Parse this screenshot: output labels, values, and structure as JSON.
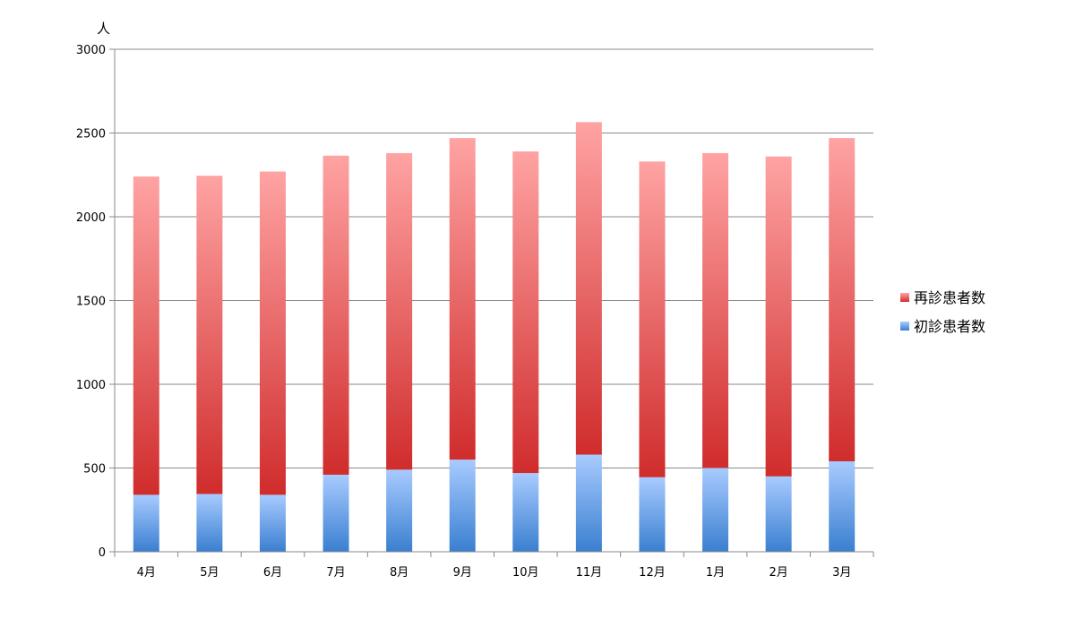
{
  "chart_data": {
    "type": "bar",
    "stacked": true,
    "title": "",
    "ylabel": "人",
    "xlabel": "",
    "ylim": [
      0,
      3000
    ],
    "yticks": [
      "0",
      "500",
      "1000",
      "1500",
      "2000",
      "2500",
      "3000"
    ],
    "ytick_values": [
      0,
      500,
      1000,
      1500,
      2000,
      2500,
      3000
    ],
    "grid": true,
    "legend_position": "right",
    "categories": [
      "4月",
      "5月",
      "6月",
      "7月",
      "8月",
      "9月",
      "10月",
      "11月",
      "12月",
      "1月",
      "2月",
      "3月"
    ],
    "series": [
      {
        "name": "初診患者数",
        "values": [
          340,
          345,
          340,
          460,
          490,
          550,
          470,
          580,
          445,
          500,
          450,
          540
        ],
        "color_light": "#a8cbff",
        "color_dark": "#3a7fd0"
      },
      {
        "name": "再診患者数",
        "values": [
          1900,
          1900,
          1930,
          1905,
          1890,
          1920,
          1920,
          1985,
          1885,
          1880,
          1910,
          1930
        ],
        "color_light": "#ffa3a3",
        "color_dark": "#d02c2c"
      }
    ]
  }
}
